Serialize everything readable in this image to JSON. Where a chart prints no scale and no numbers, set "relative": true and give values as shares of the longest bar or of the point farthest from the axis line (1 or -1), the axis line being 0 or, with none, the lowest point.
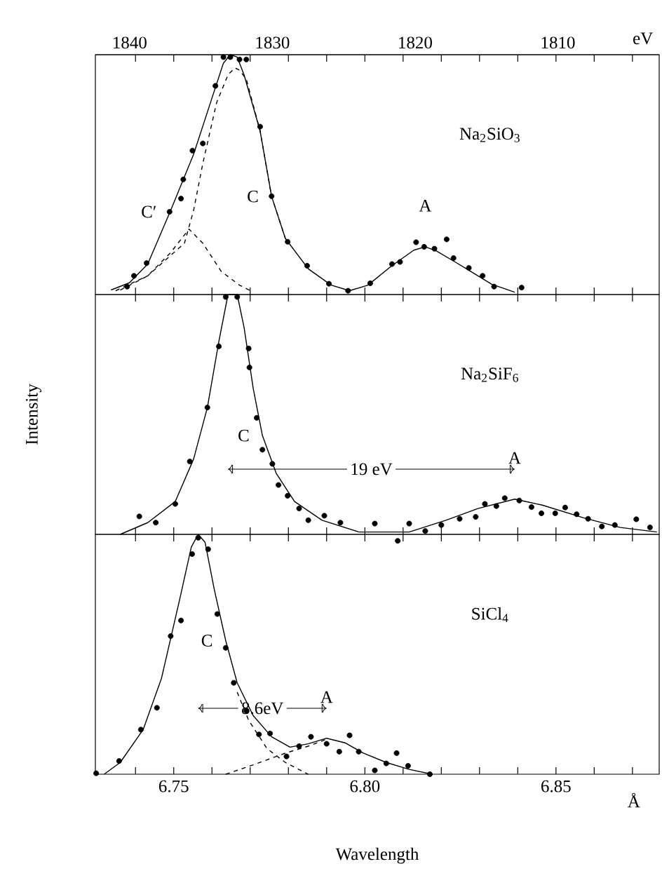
{
  "chart_data": [
    {
      "type": "scatter",
      "title": "Na$_{2}$SiO$_{3}$",
      "relative": true,
      "xlim": [
        6.7295,
        6.877
      ],
      "x2lim": [
        1842.4,
        1802.9
      ],
      "x2label": "eV",
      "tick_labels": false,
      "xticks": [
        {
          "value": 6.74,
          "label": null
        },
        {
          "value": 6.75,
          "label": null
        },
        {
          "value": 6.76,
          "label": null
        },
        {
          "value": 6.77,
          "label": null
        },
        {
          "value": 6.78,
          "label": null
        },
        {
          "value": 6.79,
          "label": null
        },
        {
          "value": 6.8,
          "label": null
        },
        {
          "value": 6.81,
          "label": null
        },
        {
          "value": 6.82,
          "label": null
        },
        {
          "value": 6.83,
          "label": null
        },
        {
          "value": 6.84,
          "label": null
        },
        {
          "value": 6.85,
          "label": null
        },
        {
          "value": 6.86,
          "label": null
        },
        {
          "value": 6.87,
          "label": null
        }
      ],
      "x2ticks": [
        1840,
        1830,
        1820,
        1810
      ],
      "series": [
        {
          "marker": "circle",
          "color": "#000000",
          "x": [
            6.7378,
            6.7396,
            6.7429,
            6.7489,
            6.7519,
            6.7525,
            6.7549,
            6.7576,
            6.7609,
            6.763,
            6.7648,
            6.7672,
            6.769,
            6.7726,
            6.7756,
            6.7798,
            6.7849,
            6.7906,
            6.7956,
            6.8014,
            6.8071,
            6.8092,
            6.8134,
            6.8155,
            6.8182,
            6.8214,
            6.8232,
            6.8272,
            6.8308,
            6.8338,
            6.841
          ],
          "values": [
            0.033,
            0.078,
            0.131,
            0.345,
            0.4,
            0.48,
            0.6,
            0.63,
            0.87,
            0.99,
            0.99,
            0.98,
            0.98,
            0.7,
            0.41,
            0.22,
            0.12,
            0.045,
            0.016,
            0.047,
            0.127,
            0.136,
            0.218,
            0.199,
            0.191,
            0.23,
            0.152,
            0.111,
            0.078,
            0.033,
            0.029
          ]
        },
        {
          "type": "line",
          "color": "#000000",
          "x": [
            6.7336,
            6.7384,
            6.7432,
            6.7492,
            6.7552,
            6.76,
            6.763,
            6.7648,
            6.7666,
            6.7684,
            6.7726,
            6.7756,
            6.7792,
            6.7852,
            6.7912,
            6.796,
            6.8008,
            6.8068,
            6.8128,
            6.8158,
            6.8188,
            6.8236,
            6.8272,
            6.8332,
            6.8392
          ],
          "values": [
            0.019,
            0.049,
            0.127,
            0.351,
            0.585,
            0.819,
            0.965,
            1.0,
            0.99,
            0.916,
            0.682,
            0.409,
            0.234,
            0.107,
            0.039,
            0.016,
            0.039,
            0.117,
            0.185,
            0.199,
            0.181,
            0.136,
            0.101,
            0.043,
            0.01
          ]
        },
        {
          "type": "line",
          "line_style": "dashed",
          "color": "#000000",
          "x": [
            6.7348,
            6.7432,
            6.7528,
            6.7552,
            6.7576,
            6.7612,
            6.7642,
            6.766,
            6.7672,
            6.769,
            6.7726,
            6.7756,
            6.7792
          ],
          "values": [
            0.016,
            0.078,
            0.214,
            0.351,
            0.546,
            0.799,
            0.916,
            0.945,
            0.936,
            0.897,
            0.682,
            0.409,
            0.234
          ]
        },
        {
          "type": "line",
          "line_style": "dashed",
          "color": "#000000",
          "x": [
            6.736,
            6.7432,
            6.7492,
            6.754,
            6.7576,
            6.7624,
            6.7672,
            6.7708
          ],
          "values": [
            0.019,
            0.078,
            0.175,
            0.273,
            0.214,
            0.097,
            0.039,
            0.01
          ]
        }
      ],
      "annotations": [
        {
          "text": "C",
          "x": 6.7756,
          "y": 0.409
        },
        {
          "text": "A",
          "x": 6.8158,
          "y": 0.199
        },
        {
          "text": "C′",
          "x": 6.7489,
          "y": 0.345
        }
      ]
    },
    {
      "type": "scatter",
      "title": "Na$_{2}$SiF$_{6}$",
      "relative": true,
      "xlim": [
        6.7295,
        6.877
      ],
      "ylabel": "Intensity",
      "tick_labels": false,
      "xticks": [
        {
          "value": 6.74,
          "label": null
        },
        {
          "value": 6.75,
          "label": null
        },
        {
          "value": 6.76,
          "label": null
        },
        {
          "value": 6.77,
          "label": null
        },
        {
          "value": 6.78,
          "label": null
        },
        {
          "value": 6.79,
          "label": null
        },
        {
          "value": 6.8,
          "label": null
        },
        {
          "value": 6.81,
          "label": null
        },
        {
          "value": 6.82,
          "label": null
        },
        {
          "value": 6.83,
          "label": null
        },
        {
          "value": 6.84,
          "label": null
        },
        {
          "value": 6.85,
          "label": null
        },
        {
          "value": 6.86,
          "label": null
        },
        {
          "value": 6.87,
          "label": null
        }
      ],
      "series": [
        {
          "marker": "circle",
          "color": "#000000",
          "x": [
            6.741,
            6.7453,
            6.7504,
            6.7542,
            6.7588,
            6.7618,
            6.7636,
            6.7666,
            6.7696,
            6.7698,
            6.7717,
            6.7732,
            6.7758,
            6.7774,
            6.7798,
            6.7828,
            6.7852,
            6.7894,
            6.7936,
            6.8026,
            6.8086,
            6.8116,
            6.8158,
            6.82,
            6.8248,
            6.829,
            6.8314,
            6.8344,
            6.8366,
            6.8404,
            6.8436,
            6.8462,
            6.8498,
            6.8524,
            6.8554,
            6.8584,
            6.862,
            6.8654,
            6.871,
            6.8746
          ],
          "values": [
            0.075,
            0.049,
            0.127,
            0.304,
            0.529,
            0.784,
            0.99,
            0.99,
            0.775,
            0.696,
            0.486,
            0.353,
            0.294,
            0.206,
            0.161,
            0.108,
            0.059,
            0.078,
            0.049,
            0.045,
            -0.027,
            0.045,
            0.014,
            0.039,
            0.065,
            0.073,
            0.127,
            0.118,
            0.151,
            0.141,
            0.114,
            0.088,
            0.088,
            0.112,
            0.084,
            0.065,
            0.033,
            0.039,
            0.063,
            0.029
          ]
        },
        {
          "type": "line",
          "color": "#000000",
          "x": [
            6.736,
            6.7432,
            6.7504,
            6.7552,
            6.7588,
            6.7618,
            6.7642,
            6.7666,
            6.7684,
            6.7708,
            6.7732,
            6.7768,
            6.7816,
            6.7888,
            6.7984,
            6.8116,
            6.8212,
            6.8296,
            6.8392,
            6.8464,
            6.8572,
            6.8668,
            6.8764
          ],
          "values": [
            0,
            0.049,
            0.137,
            0.314,
            0.529,
            0.804,
            1.0,
            1.0,
            0.863,
            0.608,
            0.412,
            0.255,
            0.137,
            0.059,
            0.01,
            0.01,
            0.059,
            0.108,
            0.147,
            0.122,
            0.069,
            0.029,
            0.01
          ]
        }
      ],
      "annotations": [
        {
          "text": "C",
          "x": 6.7732,
          "y": 0.412
        },
        {
          "text": "A",
          "x": 6.8392,
          "y": 0.147
        },
        "19 eV"
      ]
    },
    {
      "type": "scatter",
      "title": "SiCl$_{4}$",
      "relative": true,
      "xlim": [
        6.7295,
        6.877
      ],
      "xlabel": "Wavelength",
      "tick_labels": "x",
      "xticks": [
        {
          "value": 6.74,
          "label": null
        },
        6.75,
        {
          "value": 6.76,
          "label": null
        },
        {
          "value": 6.77,
          "label": null
        },
        {
          "value": 6.78,
          "label": null
        },
        {
          "value": 6.79,
          "label": null
        },
        {
          "value": 6.8,
          "label": "6.80"
        },
        {
          "value": 6.81,
          "label": null
        },
        {
          "value": 6.82,
          "label": null
        },
        {
          "value": 6.83,
          "label": null
        },
        {
          "value": 6.84,
          "label": null
        },
        6.85,
        {
          "value": 6.86,
          "label": null
        },
        {
          "value": 6.87,
          "label": null
        }
      ],
      "series": [
        {
          "marker": "circle",
          "color": "#000000",
          "x": [
            6.7297,
            6.7357,
            6.7414,
            6.7456,
            6.7492,
            6.7519,
            6.7548,
            6.7564,
            6.759,
            6.7614,
            6.7636,
            6.7657,
            6.769,
            6.7723,
            6.7752,
            6.7795,
            6.7828,
            6.7859,
            6.79,
            6.7933,
            6.796,
            6.7984,
            6.8026,
            6.8056,
            6.8083,
            6.8113,
            6.817
          ],
          "values": [
            0.004,
            0.055,
            0.186,
            0.277,
            0.576,
            0.641,
            0.918,
            0.986,
            0.938,
            0.668,
            0.527,
            0.381,
            0.264,
            0.166,
            0.17,
            0.074,
            0.117,
            0.156,
            0.127,
            0.094,
            0.162,
            0.094,
            0.016,
            0.045,
            0.088,
            0.035,
            0
          ]
        },
        {
          "type": "line",
          "color": "#000000",
          "x": [
            6.7318,
            6.736,
            6.742,
            6.7468,
            6.7516,
            6.7546,
            6.7564,
            6.7582,
            6.7606,
            6.7636,
            6.7666,
            6.7708,
            6.7756,
            6.7804,
            6.7852,
            6.79,
            6.7948,
            6.7996,
            6.8056,
            6.8116,
            6.8176
          ],
          "values": [
            0,
            0.049,
            0.186,
            0.4,
            0.732,
            0.947,
            1.0,
            0.967,
            0.771,
            0.557,
            0.381,
            0.244,
            0.156,
            0.113,
            0.127,
            0.15,
            0.131,
            0.088,
            0.049,
            0.02,
            0
          ]
        },
        {
          "type": "line",
          "line_style": "dashed",
          "color": "#000000",
          "x": [
            6.7666,
            6.7696,
            6.7744,
            6.7792,
            6.7852
          ],
          "values": [
            0.342,
            0.225,
            0.107,
            0.049,
            0
          ]
        },
        {
          "type": "line",
          "line_style": "dashed",
          "color": "#000000",
          "x": [
            6.7636,
            6.7708,
            6.7792,
            6.7852,
            6.79
          ],
          "values": [
            0,
            0.039,
            0.088,
            0.117,
            0.146
          ]
        }
      ],
      "annotations": [
        {
          "text": "C",
          "x": 6.7636,
          "y": 0.557
        },
        {
          "text": "A",
          "x": 6.79,
          "y": 0.15
        },
        "8.6eV",
        "Å"
      ]
    }
  ]
}
